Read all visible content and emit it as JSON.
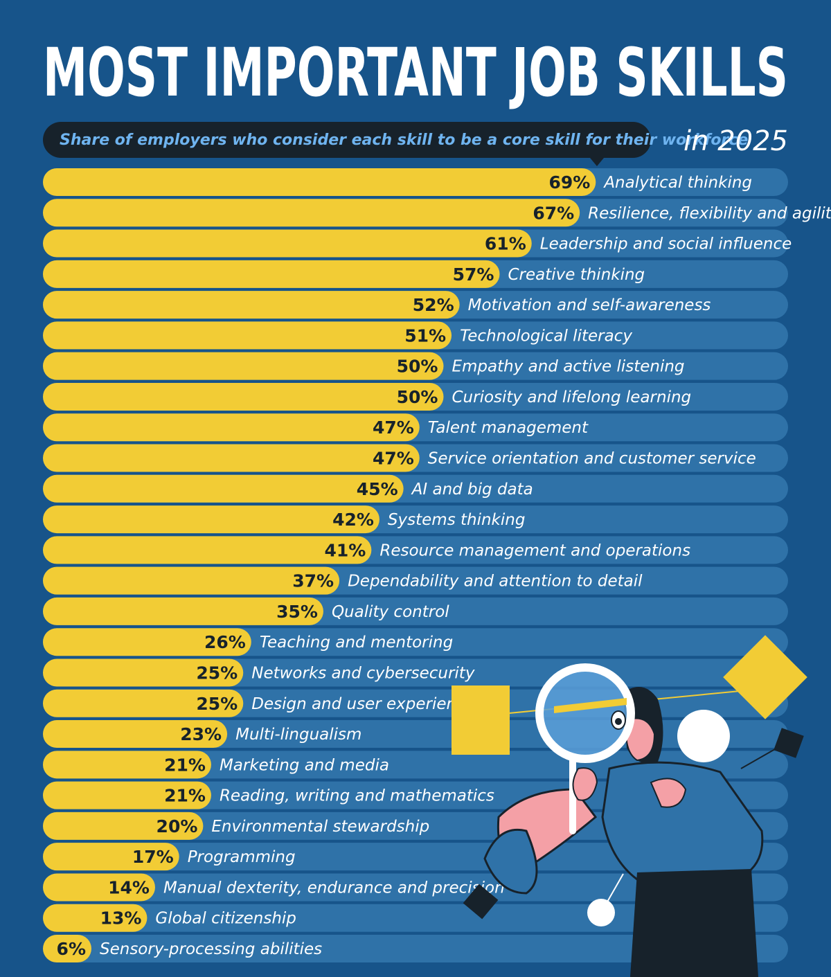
{
  "colors": {
    "background": "#17548a",
    "track": "#2f72a8",
    "bar": "#f2cc35",
    "subtitle_bg": "#17222b",
    "subtitle_text": "#6fb4f0",
    "value_text": "#17222b",
    "label_text": "#ffffff"
  },
  "chart_data": {
    "type": "bar",
    "orientation": "horizontal",
    "title": "MOST IMPORTANT JOB SKILLS",
    "subtitle": "Share of employers who consider each skill to be a core skill for their workforce",
    "year_label": "in 2025",
    "unit": "%",
    "xlim": [
      0,
      100
    ],
    "grid": false,
    "legend": "none",
    "categories": [
      "Analytical thinking",
      "Resilience, flexibility and agility",
      "Leadership and social influence",
      "Creative thinking",
      "Motivation and self-awareness",
      "Technological literacy",
      "Empathy and active listening",
      "Curiosity and lifelong learning",
      "Talent management",
      "Service orientation and customer service",
      "AI and big data",
      "Systems thinking",
      "Resource management and operations",
      "Dependability and attention to detail",
      "Quality control",
      "Teaching and mentoring",
      "Networks and cybersecurity",
      "Design and user experience",
      "Multi-lingualism",
      "Marketing and media",
      "Reading, writing and mathematics",
      "Environmental stewardship",
      "Programming",
      "Manual dexterity, endurance and precision",
      "Global citizenship",
      "Sensory-processing abilities"
    ],
    "values": [
      69,
      67,
      61,
      57,
      52,
      51,
      50,
      50,
      47,
      47,
      45,
      42,
      41,
      37,
      35,
      26,
      25,
      25,
      23,
      21,
      21,
      20,
      17,
      14,
      13,
      6
    ]
  }
}
